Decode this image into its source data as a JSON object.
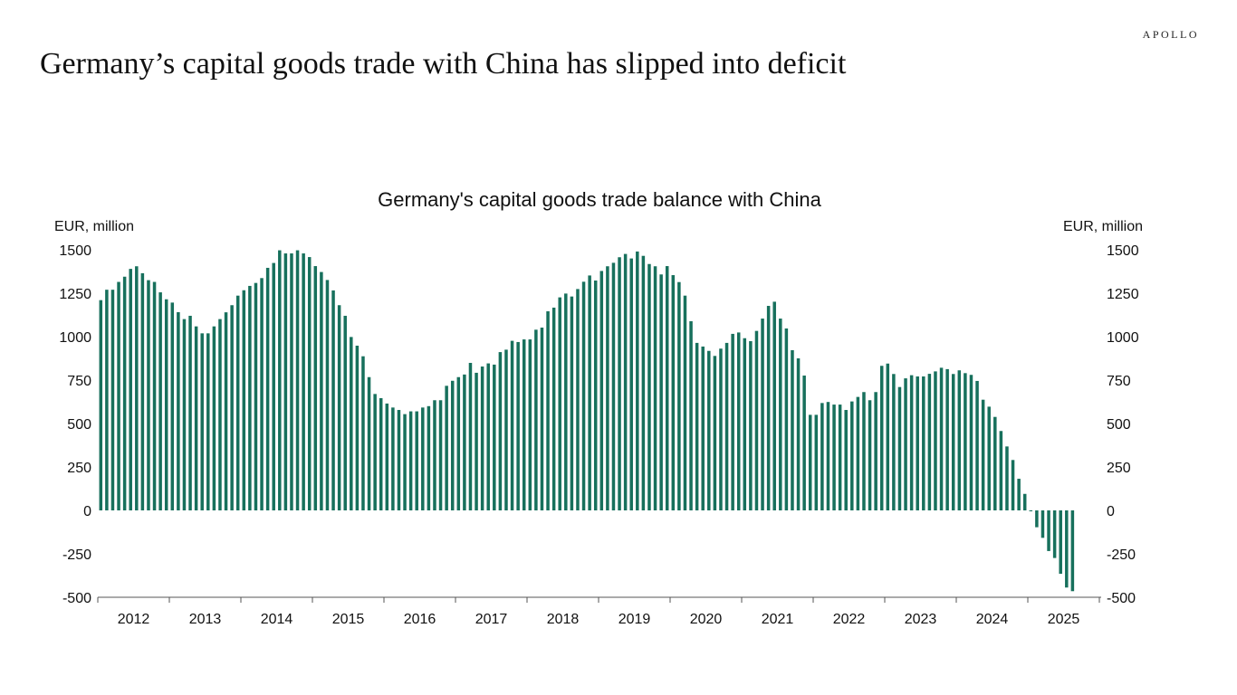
{
  "brand": "APOLLO",
  "headline": "Germany’s capital goods trade with China has slipped into deficit",
  "chart_data": {
    "type": "bar",
    "title": "Germany's capital goods trade balance with China",
    "ylabel_left": "EUR, million",
    "ylabel_right": "EUR, million",
    "xlabel": "",
    "ylim": [
      -500,
      1500
    ],
    "yticks": [
      "1500",
      "1250",
      "1000",
      "750",
      "500",
      "250",
      "0",
      "-250",
      "-500"
    ],
    "ytick_values": [
      1500,
      1250,
      1000,
      750,
      500,
      250,
      0,
      -250,
      -500
    ],
    "xtick_labels": [
      "2012",
      "2013",
      "2014",
      "2015",
      "2016",
      "2017",
      "2018",
      "2019",
      "2020",
      "2021",
      "2022",
      "2023",
      "2024",
      "2025"
    ],
    "frequency": "monthly",
    "start": "2012-01",
    "end": "2025-08",
    "grid": false,
    "bar_color": "#17705c",
    "values": [
      1210,
      1270,
      1270,
      1315,
      1345,
      1390,
      1405,
      1365,
      1325,
      1315,
      1255,
      1215,
      1196,
      1141,
      1101,
      1120,
      1059,
      1019,
      1019,
      1059,
      1101,
      1140,
      1181,
      1236,
      1267,
      1292,
      1309,
      1337,
      1396,
      1424,
      1497,
      1479,
      1479,
      1497,
      1479,
      1458,
      1406,
      1372,
      1326,
      1266,
      1181,
      1120,
      998,
      948,
      887,
      767,
      670,
      646,
      615,
      592,
      578,
      554,
      570,
      570,
      592,
      600,
      634,
      634,
      717,
      746,
      767,
      782,
      849,
      792,
      828,
      846,
      839,
      911,
      925,
      976,
      969,
      984,
      984,
      1040,
      1052,
      1146,
      1167,
      1226,
      1248,
      1231,
      1274,
      1316,
      1352,
      1323,
      1378,
      1405,
      1425,
      1457,
      1476,
      1450,
      1490,
      1465,
      1418,
      1405,
      1358,
      1406,
      1354,
      1314,
      1236,
      1089,
      964,
      943,
      918,
      889,
      931,
      964,
      1016,
      1024,
      991,
      974,
      1033,
      1104,
      1177,
      1201,
      1104,
      1047,
      922,
      875,
      776,
      550,
      550,
      618,
      624,
      609,
      609,
      578,
      627,
      653,
      681,
      634,
      681,
      832,
      845,
      785,
      710,
      760,
      778,
      771,
      771,
      786,
      800,
      821,
      813,
      785,
      806,
      790,
      780,
      745,
      637,
      597,
      538,
      457,
      368,
      290,
      182,
      95,
      0,
      -97,
      -158,
      -234,
      -274,
      -365,
      -444,
      -465
    ]
  }
}
